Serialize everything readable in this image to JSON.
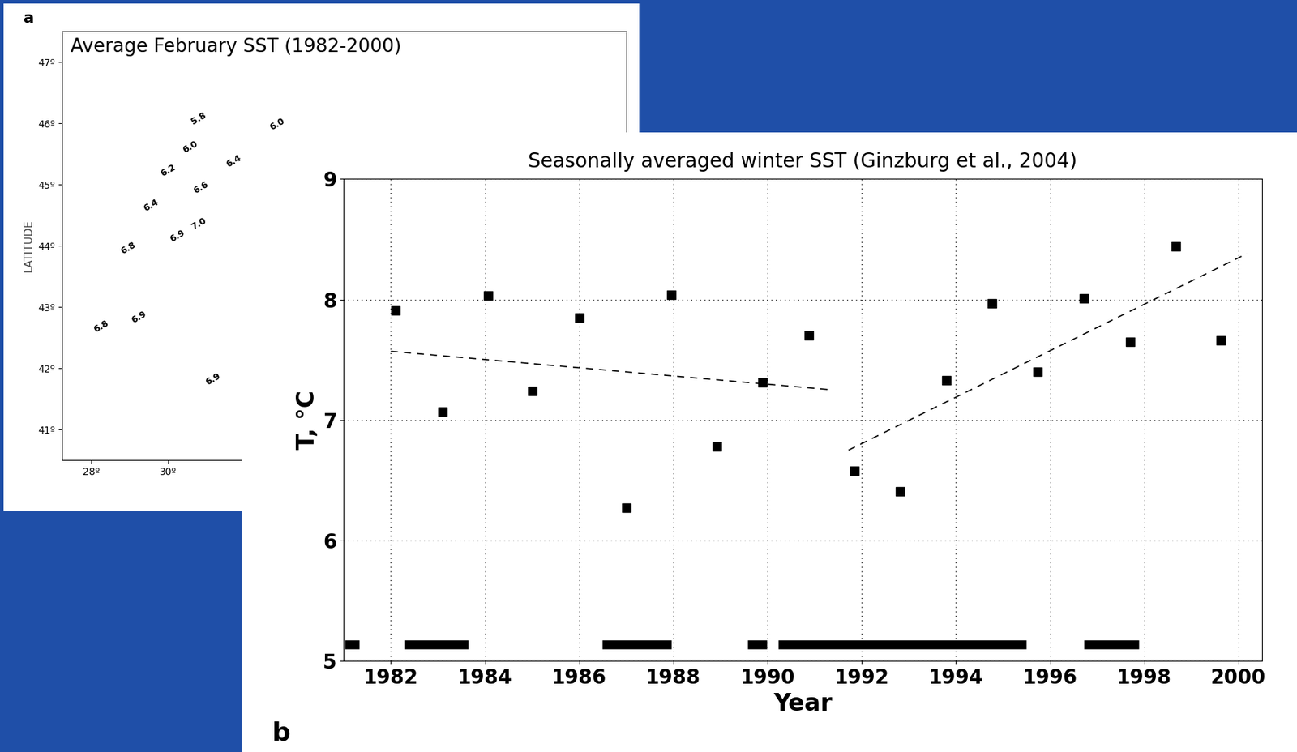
{
  "chart_data": [
    {
      "type": "map",
      "title": "Average February SST (1982-2000)",
      "y_label": "LATITUDE",
      "annotations": [
        "a"
      ],
      "xlim": [
        27.25,
        41.9
      ],
      "ylim": [
        40.5,
        47.5
      ],
      "xticks": [
        {
          "value": 28,
          "label": "28º"
        },
        {
          "value": 30,
          "label": "30º"
        }
      ],
      "yticks": [
        {
          "value": 41,
          "label": "41º"
        },
        {
          "value": 42,
          "label": "42º"
        },
        {
          "value": 43,
          "label": "43º"
        },
        {
          "value": 44,
          "label": "44º"
        },
        {
          "value": 45,
          "label": "45º"
        },
        {
          "value": 46,
          "label": "46º"
        },
        {
          "value": 47,
          "label": "47º"
        }
      ],
      "grid": false,
      "contour_labels": [
        {
          "lon": 30.8,
          "lat": 46.08,
          "value": 5.8
        },
        {
          "lon": 32.84,
          "lat": 45.99,
          "value": 6.0
        },
        {
          "lon": 30.58,
          "lat": 45.61,
          "value": 6.0
        },
        {
          "lon": 30.0,
          "lat": 45.23,
          "value": 6.2
        },
        {
          "lon": 31.7,
          "lat": 45.38,
          "value": 6.4
        },
        {
          "lon": 29.55,
          "lat": 44.66,
          "value": 6.4
        },
        {
          "lon": 30.86,
          "lat": 44.95,
          "value": 6.6
        },
        {
          "lon": 28.97,
          "lat": 43.96,
          "value": 6.8
        },
        {
          "lon": 30.24,
          "lat": 44.16,
          "value": 6.9
        },
        {
          "lon": 30.8,
          "lat": 44.36,
          "value": 7.0
        },
        {
          "lon": 29.25,
          "lat": 42.84,
          "value": 6.9
        },
        {
          "lon": 28.26,
          "lat": 42.68,
          "value": 6.8
        },
        {
          "lon": 31.16,
          "lat": 41.82,
          "value": 6.9
        }
      ]
    },
    {
      "type": "scatter",
      "title": "Seasonally averaged winter SST (Ginzburg et al., 2004)",
      "x_label": "Year",
      "y_label": "T, °C",
      "annotations": [
        "b"
      ],
      "xlim": [
        1981.0,
        2000.5
      ],
      "ylim": [
        5,
        9
      ],
      "xticks": [
        1982,
        1984,
        1986,
        1988,
        1990,
        1992,
        1994,
        1996,
        1998,
        2000
      ],
      "yticks": [
        5,
        6,
        7,
        8,
        9
      ],
      "grid": true,
      "series": [
        {
          "type": "scatter",
          "marker": "square",
          "color": "#000000",
          "x": [
            1982.1,
            1983.1,
            1984.07,
            1985.0,
            1986.0,
            1987.0,
            1987.95,
            1988.93,
            1989.9,
            1990.88,
            1991.84,
            1992.82,
            1993.8,
            1994.77,
            1995.74,
            1996.72,
            1997.7,
            1998.67,
            1999.63
          ],
          "values": [
            7.91,
            7.07,
            8.03,
            7.24,
            7.85,
            6.27,
            8.04,
            6.78,
            7.31,
            7.7,
            6.58,
            6.41,
            7.33,
            7.97,
            7.4,
            8.01,
            7.65,
            8.44,
            7.66
          ]
        },
        {
          "type": "line",
          "line_style": "dashed",
          "color": "#000000",
          "x": [
            1982.0,
            1991.37
          ],
          "values": [
            7.57,
            7.25
          ]
        },
        {
          "type": "line",
          "line_style": "dashed",
          "color": "#000000",
          "x": [
            1991.72,
            2000.18
          ],
          "values": [
            6.75,
            8.38
          ]
        },
        {
          "type": "segments",
          "color": "#000000",
          "level": 5.14,
          "starts": [
            1981.02,
            1982.28,
            1986.49,
            1989.58,
            1990.23,
            1996.72
          ],
          "ends": [
            1981.33,
            1983.65,
            1987.96,
            1989.98,
            1995.5,
            1997.88
          ]
        }
      ]
    }
  ]
}
